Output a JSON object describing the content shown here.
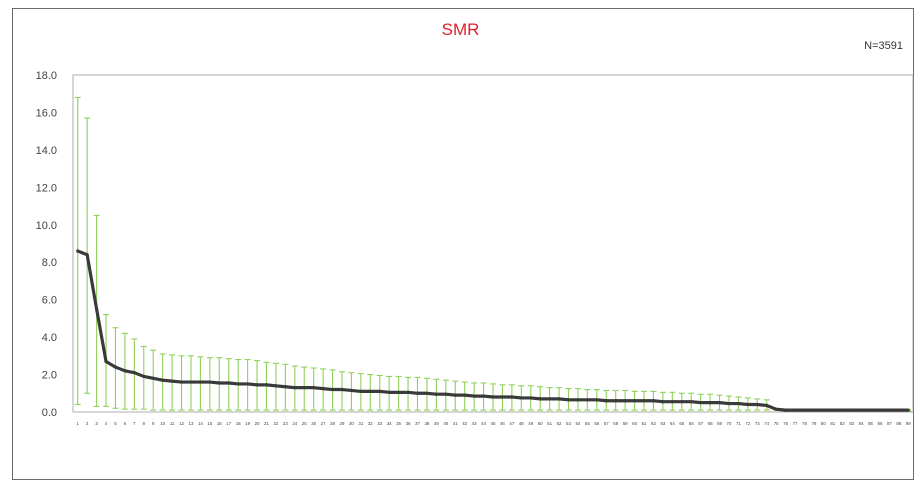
{
  "chart_data": {
    "type": "line",
    "title": "SMR",
    "annotation": "N=3591",
    "xlabel": "",
    "ylabel": "",
    "ylim": [
      0,
      18
    ],
    "y_ticks": [
      "18.0",
      "16.0",
      "14.0",
      "12.0",
      "10.0",
      "8.0",
      "6.0",
      "4.0",
      "2.0",
      "0.0"
    ],
    "y_tick_values": [
      18,
      16,
      14,
      12,
      10,
      8,
      6,
      4,
      2,
      0
    ],
    "x": [
      "1",
      "2",
      "3",
      "4",
      "5",
      "6",
      "7",
      "8",
      "9",
      "10",
      "11",
      "12",
      "13",
      "14",
      "15",
      "16",
      "17",
      "18",
      "19",
      "20",
      "21",
      "22",
      "23",
      "24",
      "25",
      "26",
      "27",
      "28",
      "29",
      "30",
      "31",
      "32",
      "33",
      "34",
      "35",
      "36",
      "37",
      "38",
      "39",
      "40",
      "41",
      "42",
      "43",
      "44",
      "45",
      "46",
      "47",
      "48",
      "49",
      "50",
      "51",
      "52",
      "53",
      "54",
      "55",
      "56",
      "57",
      "58",
      "59",
      "60",
      "61",
      "62",
      "63",
      "64",
      "65",
      "66",
      "67",
      "68",
      "69",
      "70",
      "71",
      "72",
      "73",
      "74",
      "75",
      "76",
      "77",
      "78",
      "79",
      "80",
      "81",
      "82",
      "83",
      "84",
      "85",
      "86",
      "87",
      "88",
      "89"
    ],
    "series": [
      {
        "values": [
          8.6,
          8.4,
          5.5,
          2.7,
          2.4,
          2.2,
          2.1,
          1.9,
          1.8,
          1.7,
          1.65,
          1.6,
          1.6,
          1.6,
          1.6,
          1.55,
          1.55,
          1.5,
          1.5,
          1.45,
          1.45,
          1.4,
          1.35,
          1.3,
          1.3,
          1.3,
          1.25,
          1.2,
          1.2,
          1.15,
          1.1,
          1.1,
          1.1,
          1.05,
          1.05,
          1.05,
          1.0,
          1.0,
          0.95,
          0.95,
          0.9,
          0.9,
          0.85,
          0.85,
          0.8,
          0.8,
          0.8,
          0.75,
          0.75,
          0.7,
          0.7,
          0.7,
          0.65,
          0.65,
          0.65,
          0.65,
          0.6,
          0.6,
          0.6,
          0.6,
          0.6,
          0.6,
          0.55,
          0.55,
          0.55,
          0.55,
          0.5,
          0.5,
          0.5,
          0.45,
          0.45,
          0.4,
          0.4,
          0.35,
          0.15,
          0.1,
          0.1,
          0.1,
          0.1,
          0.1,
          0.1,
          0.1,
          0.1,
          0.1,
          0.1,
          0.1,
          0.1,
          0.1,
          0.1
        ],
        "color": "#3a3a3a"
      }
    ],
    "error_upper": [
      16.8,
      15.7,
      10.5,
      5.2,
      4.5,
      4.2,
      3.9,
      3.5,
      3.3,
      3.1,
      3.05,
      3.0,
      3.0,
      2.95,
      2.9,
      2.9,
      2.85,
      2.8,
      2.8,
      2.75,
      2.65,
      2.6,
      2.55,
      2.45,
      2.4,
      2.35,
      2.3,
      2.25,
      2.15,
      2.1,
      2.05,
      2.0,
      1.95,
      1.9,
      1.9,
      1.85,
      1.85,
      1.8,
      1.75,
      1.7,
      1.65,
      1.6,
      1.55,
      1.55,
      1.5,
      1.45,
      1.45,
      1.4,
      1.4,
      1.35,
      1.3,
      1.3,
      1.25,
      1.25,
      1.2,
      1.2,
      1.15,
      1.15,
      1.15,
      1.1,
      1.1,
      1.1,
      1.05,
      1.05,
      1.0,
      1.0,
      0.95,
      0.95,
      0.9,
      0.85,
      0.8,
      0.75,
      0.7,
      0.65,
      0.15,
      0.1,
      0.1,
      0.1,
      0.1,
      0.1,
      0.1,
      0.1,
      0.1,
      0.1,
      0.1,
      0.1,
      0.1,
      0.1,
      0.1
    ],
    "error_lower": [
      0.4,
      1.0,
      0.3,
      0.3,
      0.2,
      0.15,
      0.15,
      0.15,
      0.1,
      0.1,
      0.1,
      0.1,
      0.1,
      0.1,
      0.1,
      0.1,
      0.1,
      0.1,
      0.1,
      0.1,
      0.1,
      0.1,
      0.1,
      0.1,
      0.1,
      0.1,
      0.1,
      0.1,
      0.1,
      0.1,
      0.1,
      0.1,
      0.1,
      0.1,
      0.1,
      0.1,
      0.1,
      0.1,
      0.1,
      0.1,
      0.1,
      0.1,
      0.1,
      0.1,
      0.1,
      0.1,
      0.1,
      0.1,
      0.1,
      0.1,
      0.1,
      0.1,
      0.1,
      0.1,
      0.1,
      0.1,
      0.1,
      0.1,
      0.1,
      0.1,
      0.1,
      0.1,
      0.1,
      0.1,
      0.1,
      0.1,
      0.1,
      0.1,
      0.1,
      0.1,
      0.1,
      0.1,
      0.1,
      0.1,
      0.1,
      0.05,
      0.05,
      0.05,
      0.05,
      0.05,
      0.05,
      0.05,
      0.05,
      0.05,
      0.05,
      0.05,
      0.05,
      0.05,
      0.05
    ],
    "error_color": "#8ed15a",
    "title_color": "#e0202e",
    "grid": false,
    "legend": "none"
  }
}
